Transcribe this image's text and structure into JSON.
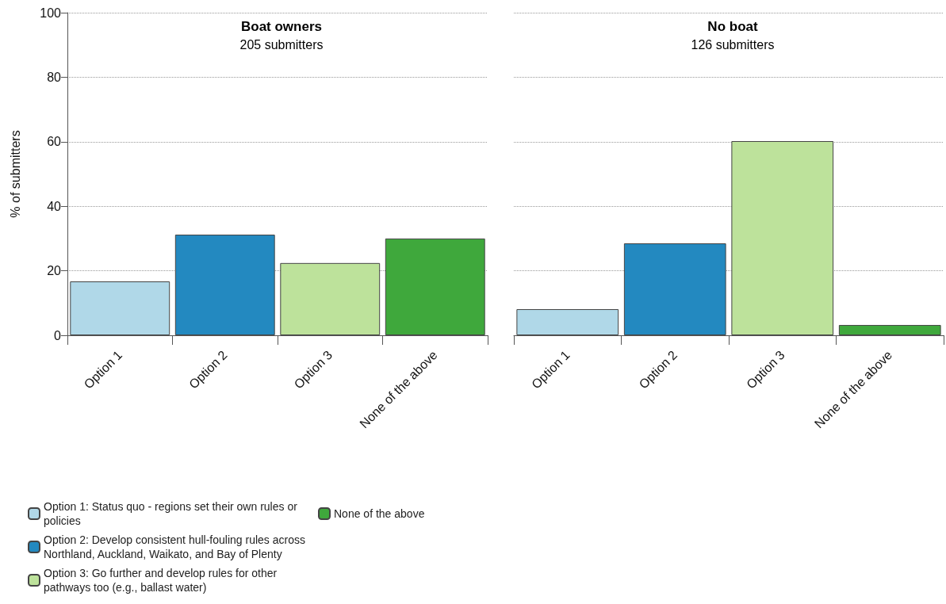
{
  "chart_data": [
    {
      "type": "bar",
      "title": "Boat owners",
      "subtitle": "205 submitters",
      "ylabel": "% of submitters",
      "categories": [
        "Option 1",
        "Option 2",
        "Option 3",
        "None of the above"
      ],
      "stacked": true,
      "series": [
        {
          "name": "Option 1: Status quo - regions set their own rules or policies",
          "color": "#b0d8e8",
          "values": [
            16.7,
            null,
            null,
            null
          ]
        },
        {
          "name": "Option 2: Develop consistent hull-fouling rules across Northland, Auckland, Waikato, and Bay of Plenty",
          "color": "#2389c0",
          "values": [
            null,
            31.2,
            null,
            null
          ]
        },
        {
          "name": "Option 3: Go further and develop rules for other pathways too (e.g., ballast water)",
          "color": "#bde29b",
          "values": [
            null,
            null,
            22.4,
            null
          ]
        },
        {
          "name": "None of the above",
          "color": "#3fa83c",
          "values": [
            null,
            null,
            null,
            30.0
          ]
        }
      ],
      "ylim": [
        0,
        100
      ],
      "yticks": [
        0,
        20,
        40,
        60,
        80,
        100
      ],
      "grid": "y",
      "legend": "bottom left"
    },
    {
      "type": "bar",
      "title": "No boat",
      "subtitle": "126 submitters",
      "categories": [
        "Option 1",
        "Option 2",
        "Option 3",
        "None of the above"
      ],
      "values": [
        8.1,
        28.5,
        60.2,
        3.2
      ],
      "colors": [
        "#b0d8e8",
        "#2389c0",
        "#bde29b",
        "#3fa83c"
      ],
      "ylim": [
        0,
        100
      ],
      "yticks": [
        0,
        20,
        40,
        60,
        80,
        100
      ],
      "grid": "y",
      "tick_labels": "x"
    }
  ]
}
